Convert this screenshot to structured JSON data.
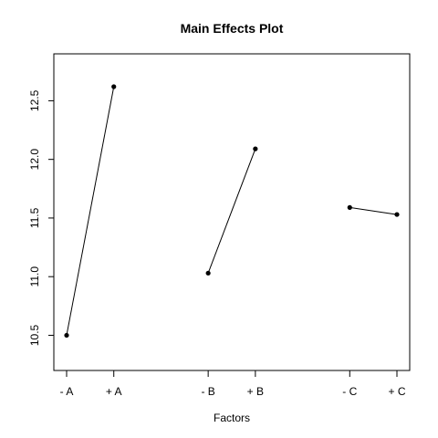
{
  "chart_data": {
    "type": "line",
    "title": "Main Effects Plot",
    "xlabel": "Factors",
    "ylabel": "",
    "x_ticks": [
      "- A",
      "+ A",
      "- B",
      "+ B",
      "- C",
      "+ C"
    ],
    "x_positions": [
      1,
      2,
      4,
      5,
      7,
      8
    ],
    "xlim": [
      1,
      8
    ],
    "ylim": [
      10.2,
      12.9
    ],
    "y_ticks": [
      10.5,
      11.0,
      11.5,
      12.0,
      12.5
    ],
    "y_tick_labels": [
      "10.5",
      "11.0",
      "11.5",
      "12.0",
      "12.5"
    ],
    "series": [
      {
        "levels": [
          "- A",
          "+ A"
        ],
        "x": [
          1,
          2
        ],
        "values": [
          10.5,
          12.62
        ]
      },
      {
        "levels": [
          "- B",
          "+ B"
        ],
        "x": [
          4,
          5
        ],
        "values": [
          11.03,
          12.09
        ]
      },
      {
        "levels": [
          "- C",
          "+ C"
        ],
        "x": [
          7,
          8
        ],
        "values": [
          11.59,
          11.53
        ]
      }
    ],
    "grid": false,
    "legend": "none"
  }
}
